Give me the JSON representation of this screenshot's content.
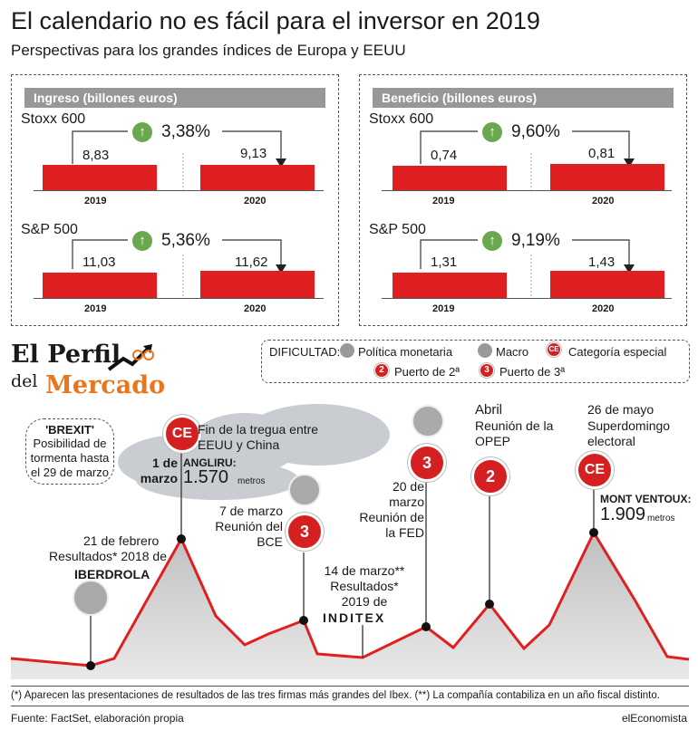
{
  "header": {
    "title": "El calendario no es fácil para el inversor en 2019",
    "subtitle": "Perspectivas para los grandes índices de Europa y EEUU"
  },
  "chart_data": [
    {
      "type": "bar",
      "title": "Ingreso (billones euros)",
      "categories": [
        "2019",
        "2020"
      ],
      "series": [
        {
          "name": "Stoxx 600",
          "values": [
            8.83,
            9.13
          ],
          "labels": [
            "8,83",
            "9,13"
          ],
          "change": "3,38%"
        },
        {
          "name": "S&P 500",
          "values": [
            11.03,
            11.62
          ],
          "labels": [
            "11,03",
            "11,62"
          ],
          "change": "5,36%"
        }
      ]
    },
    {
      "type": "bar",
      "title": "Beneficio (billones euros)",
      "categories": [
        "2019",
        "2020"
      ],
      "series": [
        {
          "name": "Stoxx 600",
          "values": [
            0.74,
            0.81
          ],
          "labels": [
            "0,74",
            "0,81"
          ],
          "change": "9,60%"
        },
        {
          "name": "S&P 500",
          "values": [
            1.31,
            1.43
          ],
          "labels": [
            "1,31",
            "1,43"
          ],
          "change": "9,19%"
        }
      ]
    }
  ],
  "brand": {
    "line1": "El Perfil",
    "line2": "del",
    "line3": "Mercado"
  },
  "legend": {
    "title": "DIFICULTAD:",
    "items": [
      "Política monetaria",
      "Macro",
      "Categoría especial",
      "Puerto de 2ª",
      "Puerto de 3ª"
    ],
    "badge_ce": "CE",
    "badge_2": "2",
    "badge_3": "3"
  },
  "events": {
    "brexit_title": "'BREXIT'",
    "brexit_text": "Posibilidad de tormenta hasta el 29 de marzo",
    "tregua": "Fin de la tregua entre EEUU y China",
    "angliru_date": "1 de marzo",
    "angliru_name": "ANGLIRU:",
    "angliru_alt": "1.570",
    "metros": "metros",
    "bce": "7 de marzo Reunión del BCE",
    "iberdrola_date": "21 de febrero",
    "iberdrola_text": "Resultados* 2018 de",
    "iberdrola_logo": "IBERDROLA",
    "fed": "20 de marzo Reunión de la FED",
    "inditex_date": "14 de marzo**",
    "inditex_text": "Resultados* 2019 de",
    "inditex_logo": "INDITEX",
    "opep_date": "Abril",
    "opep_text": "Reunión de la OPEP",
    "mayo_date": "26 de mayo",
    "mayo_text": "Superdomingo electoral",
    "ventoux_name": "MONT VENTOUX:",
    "ventoux_alt": "1.909"
  },
  "footnote": "(*) Aparecen las presentaciones de resultados de las tres firmas más grandes del Ibex.  (**) La compañía contabiliza en un año  fiscal distinto.",
  "source": "Fuente: FactSet, elaboración propia",
  "publisher": "elEconomista",
  "colors": {
    "red": "#e02020",
    "gray": "#979797",
    "green": "#6aa84f",
    "orange": "#e8761c"
  }
}
